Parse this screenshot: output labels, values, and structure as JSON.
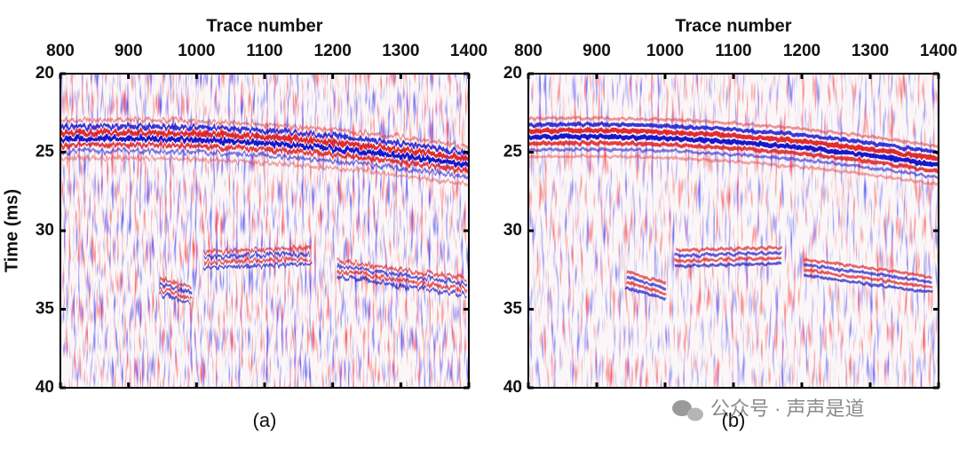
{
  "chart_data": [
    {
      "type": "seismic",
      "x_label": "Trace number",
      "xlim": [
        800,
        1400
      ],
      "xticks": [
        800,
        900,
        1000,
        1100,
        1200,
        1300,
        1400
      ],
      "y_label": "Time (ms)",
      "ylim": [
        20,
        40
      ],
      "yticks": [
        20,
        25,
        30,
        35,
        40
      ],
      "y_inverted": true,
      "panel_label": "(a)"
    },
    {
      "type": "seismic",
      "x_label": "Trace number",
      "xlim": [
        800,
        1400
      ],
      "xticks": [
        800,
        900,
        1000,
        1100,
        1200,
        1300,
        1400
      ],
      "ylim": [
        20,
        40
      ],
      "yticks": [
        20,
        25,
        30,
        35,
        40
      ],
      "y_inverted": true,
      "panel_label": "(b)"
    }
  ],
  "watermark": "公众号 · 声声是道"
}
